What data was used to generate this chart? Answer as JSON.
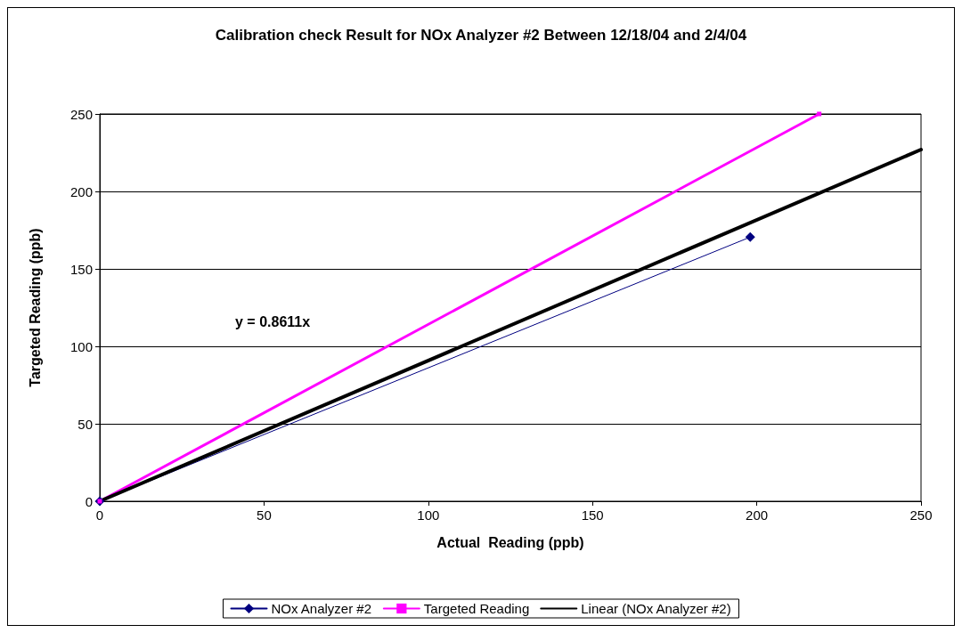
{
  "chart_data": {
    "type": "line",
    "title": "Calibration check Result for NOx Analyzer #2 Between 12/18/04 and 2/4/04",
    "xlabel": "Actual  Reading (ppb)",
    "ylabel": "Targeted Reading (ppb)",
    "series": [
      {
        "name": "NOx Analyzer #2",
        "color": "#000080",
        "marker": "diamond",
        "x": [
          0,
          198
        ],
        "values": [
          0,
          170.5
        ]
      },
      {
        "name": "Targeted Reading",
        "color": "#ff00ff",
        "marker": "square",
        "x": [
          0,
          219
        ],
        "values": [
          0,
          250
        ]
      },
      {
        "name": "Linear (NOx Analyzer #2)",
        "color": "#000000",
        "marker": "none",
        "x": [
          0,
          250
        ],
        "values": [
          0,
          227
        ]
      }
    ],
    "annotations": [
      "y = 0.8611x"
    ],
    "xlim": [
      0,
      250
    ],
    "xticks": [
      0,
      50,
      100,
      150,
      200,
      250
    ],
    "ylim": [
      0,
      250
    ],
    "yticks": [
      0,
      50,
      100,
      150,
      200,
      250
    ],
    "grid": "y",
    "legend": "bottom"
  }
}
